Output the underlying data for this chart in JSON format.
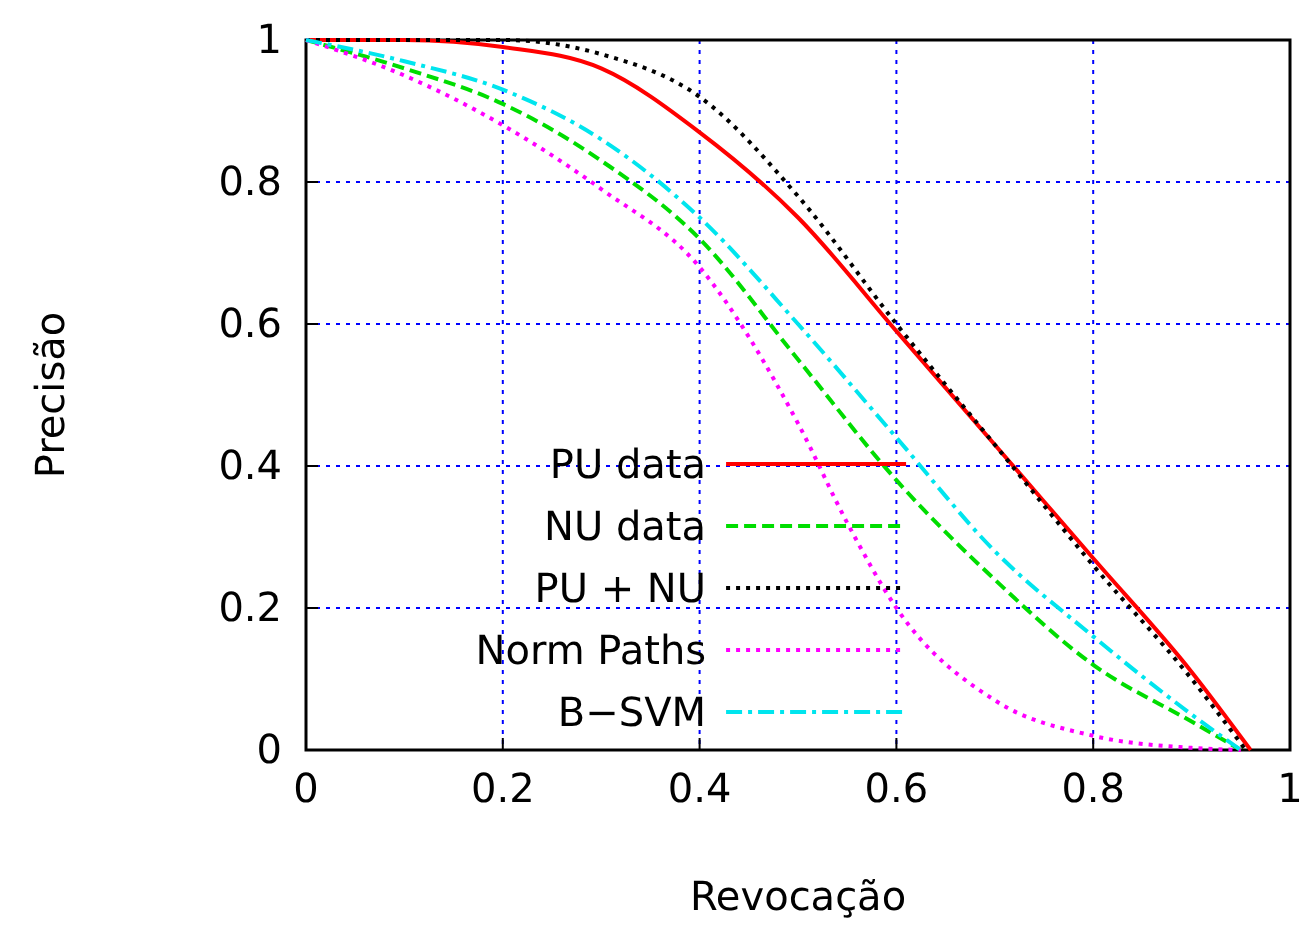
{
  "chart_data": {
    "type": "line",
    "xlabel": "Revocação",
    "ylabel": "Precisão",
    "xlim": [
      0,
      1
    ],
    "ylim": [
      0,
      1
    ],
    "xticks": [
      0,
      0.2,
      0.4,
      0.6,
      0.8,
      1
    ],
    "yticks": [
      0,
      0.2,
      0.4,
      0.6,
      0.8,
      1
    ],
    "grid": true,
    "legend": "bottom",
    "marker": "none",
    "series": [
      {
        "name": "PU data",
        "color": "#ff0000",
        "line_style": "solid",
        "x": [
          0,
          0.1,
          0.2,
          0.3,
          0.4,
          0.5,
          0.6,
          0.7,
          0.8,
          0.9,
          0.96
        ],
        "values": [
          1,
          1,
          0.99,
          0.96,
          0.87,
          0.75,
          0.59,
          0.43,
          0.27,
          0.11,
          0
        ]
      },
      {
        "name": "NU data",
        "color": "#00dd00",
        "line_style": "dashed",
        "x": [
          0,
          0.1,
          0.2,
          0.3,
          0.4,
          0.5,
          0.6,
          0.7,
          0.8,
          0.9,
          0.95
        ],
        "values": [
          1,
          0.96,
          0.91,
          0.83,
          0.72,
          0.55,
          0.38,
          0.24,
          0.12,
          0.04,
          0
        ]
      },
      {
        "name": "PU + NU",
        "color": "#000000",
        "line_style": "dotted",
        "x": [
          0,
          0.1,
          0.2,
          0.3,
          0.4,
          0.5,
          0.6,
          0.7,
          0.8,
          0.9,
          0.955
        ],
        "values": [
          1,
          1,
          1,
          0.98,
          0.92,
          0.78,
          0.6,
          0.43,
          0.26,
          0.1,
          0
        ]
      },
      {
        "name": "Norm Paths",
        "color": "#ff00ff",
        "line_style": "dotted",
        "x": [
          0,
          0.1,
          0.2,
          0.3,
          0.4,
          0.5,
          0.55,
          0.6,
          0.7,
          0.8,
          0.9,
          0.95
        ],
        "values": [
          1,
          0.95,
          0.88,
          0.79,
          0.68,
          0.46,
          0.32,
          0.2,
          0.07,
          0.02,
          0.003,
          0
        ]
      },
      {
        "name": "B−SVM",
        "color": "#00e5ee",
        "line_style": "dashdot",
        "x": [
          0,
          0.1,
          0.2,
          0.3,
          0.4,
          0.5,
          0.6,
          0.7,
          0.8,
          0.9,
          0.95
        ],
        "values": [
          1,
          0.97,
          0.93,
          0.86,
          0.75,
          0.6,
          0.44,
          0.28,
          0.16,
          0.05,
          0
        ]
      }
    ]
  }
}
